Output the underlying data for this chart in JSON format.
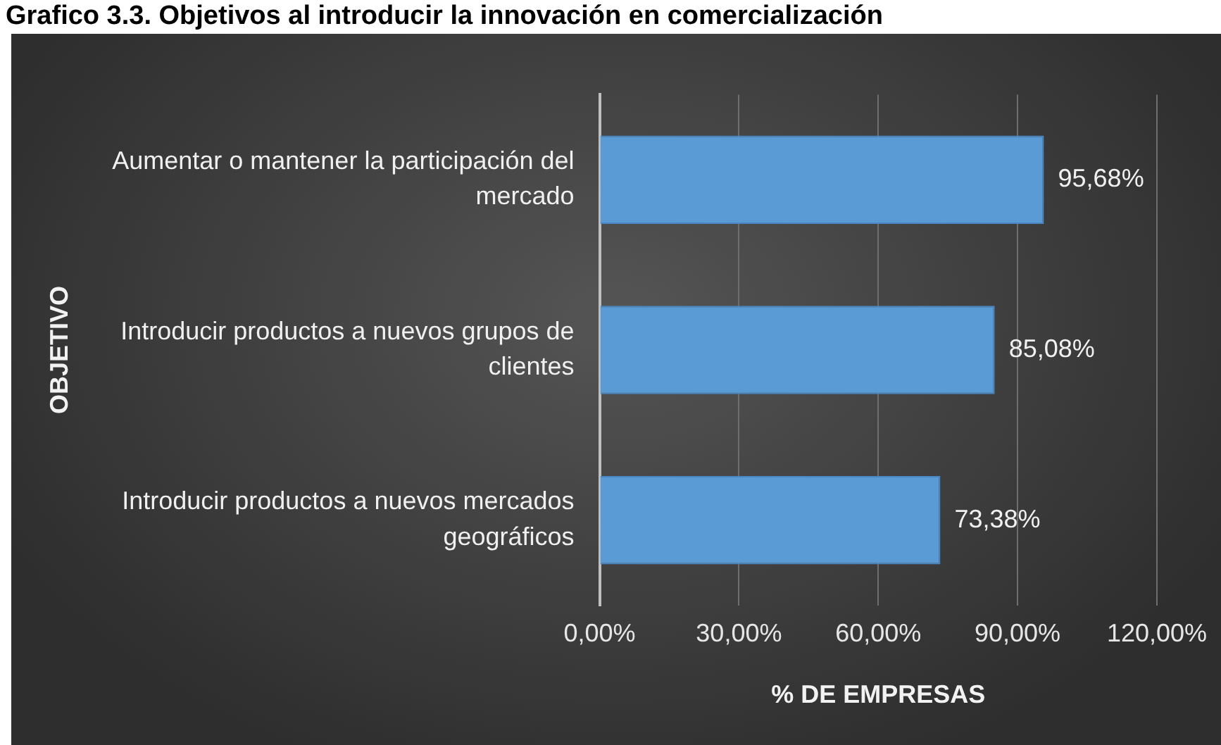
{
  "chart_data": {
    "type": "bar",
    "orientation": "horizontal",
    "title": "Grafico 3.3. Objetivos al introducir la innovación en comercialización",
    "xlabel": "% DE EMPRESAS",
    "ylabel": "OBJETIVO",
    "categories": [
      "Aumentar o mantener la participación del mercado",
      "Introducir productos a nuevos grupos de clientes",
      "Introducir productos a nuevos mercados geográficos"
    ],
    "values": [
      95.68,
      85.08,
      73.38
    ],
    "color": "#5b9bd5",
    "value_labels": [
      "95,68%",
      "85,08%",
      "73,38%"
    ],
    "xlim": [
      0,
      120
    ],
    "xticks": [
      {
        "value": 0,
        "label": "0,00%"
      },
      {
        "value": 30,
        "label": "30,00%"
      },
      {
        "value": 60,
        "label": "60,00%"
      },
      {
        "value": 90,
        "label": "90,00%"
      },
      {
        "value": 120,
        "label": "120,00%"
      }
    ],
    "grid": "x",
    "legend": false
  }
}
